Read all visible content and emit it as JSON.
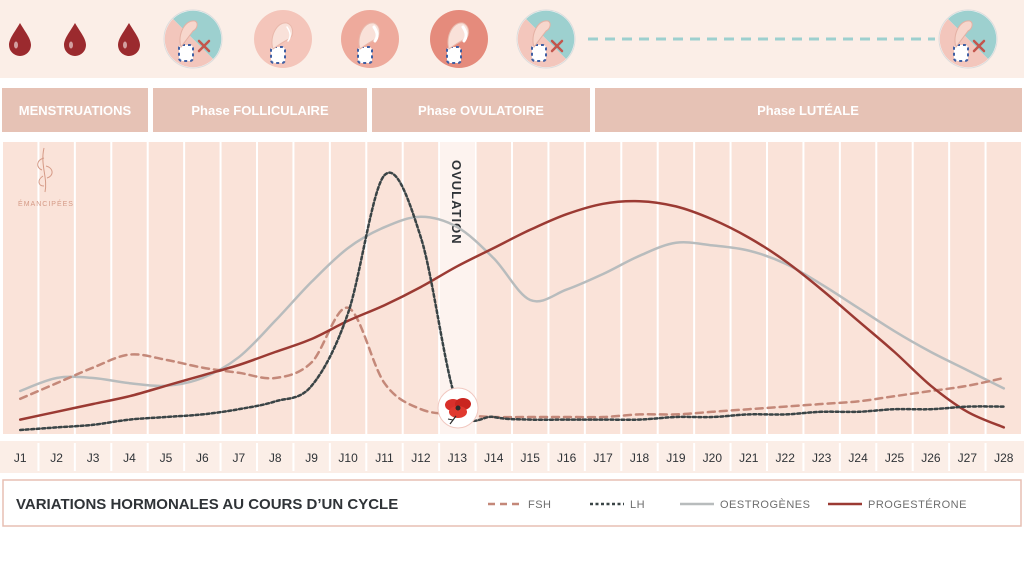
{
  "brand": {
    "logo_text": "ÉMANCIPÉES"
  },
  "phases": [
    {
      "label": "MENSTRUATIONS"
    },
    {
      "label": "Phase FOLLICULAIRE"
    },
    {
      "label": "Phase OVULATOIRE"
    },
    {
      "label": "Phase LUTÉALE"
    }
  ],
  "ovulation_label": "OVULATION",
  "icons": {
    "top_row": [
      "blood-drop-icon",
      "blood-drop-icon",
      "blood-drop-icon",
      "hand-no-mucus-icon",
      "hand-pinch-icon",
      "hand-stretch-icon",
      "hand-stretch-strong-icon",
      "hand-no-mucus-icon",
      "hand-no-mucus-icon"
    ],
    "poppy": "poppy-flower-icon"
  },
  "colors": {
    "band_bg": "#fae3d9",
    "phase_bg": "#e6c2b5",
    "fsh": "#c48879",
    "lh": "#3a4446",
    "oestrogenes": "#b8bcbd",
    "progesterone": "#9b3a33",
    "drop": "#9b2a2e",
    "teal": "#9dd0cf"
  },
  "chart_data": {
    "type": "line",
    "title": "VARIATIONS HORMONALES AU COURS D’UN CYCLE",
    "xlabel": "",
    "ylabel": "",
    "categories": [
      "J1",
      "J2",
      "J3",
      "J4",
      "J5",
      "J6",
      "J7",
      "J8",
      "J9",
      "J10",
      "J11",
      "J12",
      "J13",
      "J14",
      "J15",
      "J16",
      "J17",
      "J18",
      "J19",
      "J20",
      "J21",
      "J22",
      "J23",
      "J24",
      "J25",
      "J26",
      "J27",
      "J28"
    ],
    "ylim": [
      0,
      100
    ],
    "grid": true,
    "legend_position": "bottom",
    "series": [
      {
        "name": "FSH",
        "style": "dashed",
        "values": [
          12,
          18,
          24,
          29,
          27,
          24,
          22,
          20,
          26,
          47,
          18,
          8,
          6,
          5,
          5,
          5,
          5,
          6,
          6,
          7,
          8,
          9,
          10,
          11,
          13,
          15,
          17,
          20
        ]
      },
      {
        "name": "LH",
        "style": "dotted",
        "values": [
          0,
          1,
          2,
          4,
          5,
          6,
          8,
          11,
          17,
          45,
          98,
          74,
          10,
          5,
          4,
          4,
          4,
          4,
          5,
          5,
          6,
          6,
          7,
          7,
          8,
          8,
          9,
          9
        ]
      },
      {
        "name": "OESTROGÈNES",
        "style": "solid",
        "values": [
          15,
          20,
          20,
          18,
          17,
          20,
          28,
          42,
          57,
          70,
          78,
          82,
          78,
          66,
          50,
          54,
          60,
          67,
          72,
          71,
          69,
          64,
          56,
          47,
          38,
          30,
          23,
          16
        ]
      },
      {
        "name": "PROGESTÉRONE",
        "style": "solid",
        "values": [
          4,
          7,
          10,
          13,
          17,
          21,
          25,
          30,
          35,
          42,
          48,
          55,
          63,
          70,
          77,
          83,
          87,
          88,
          86,
          81,
          74,
          65,
          54,
          42,
          30,
          17,
          7,
          1
        ]
      }
    ]
  }
}
